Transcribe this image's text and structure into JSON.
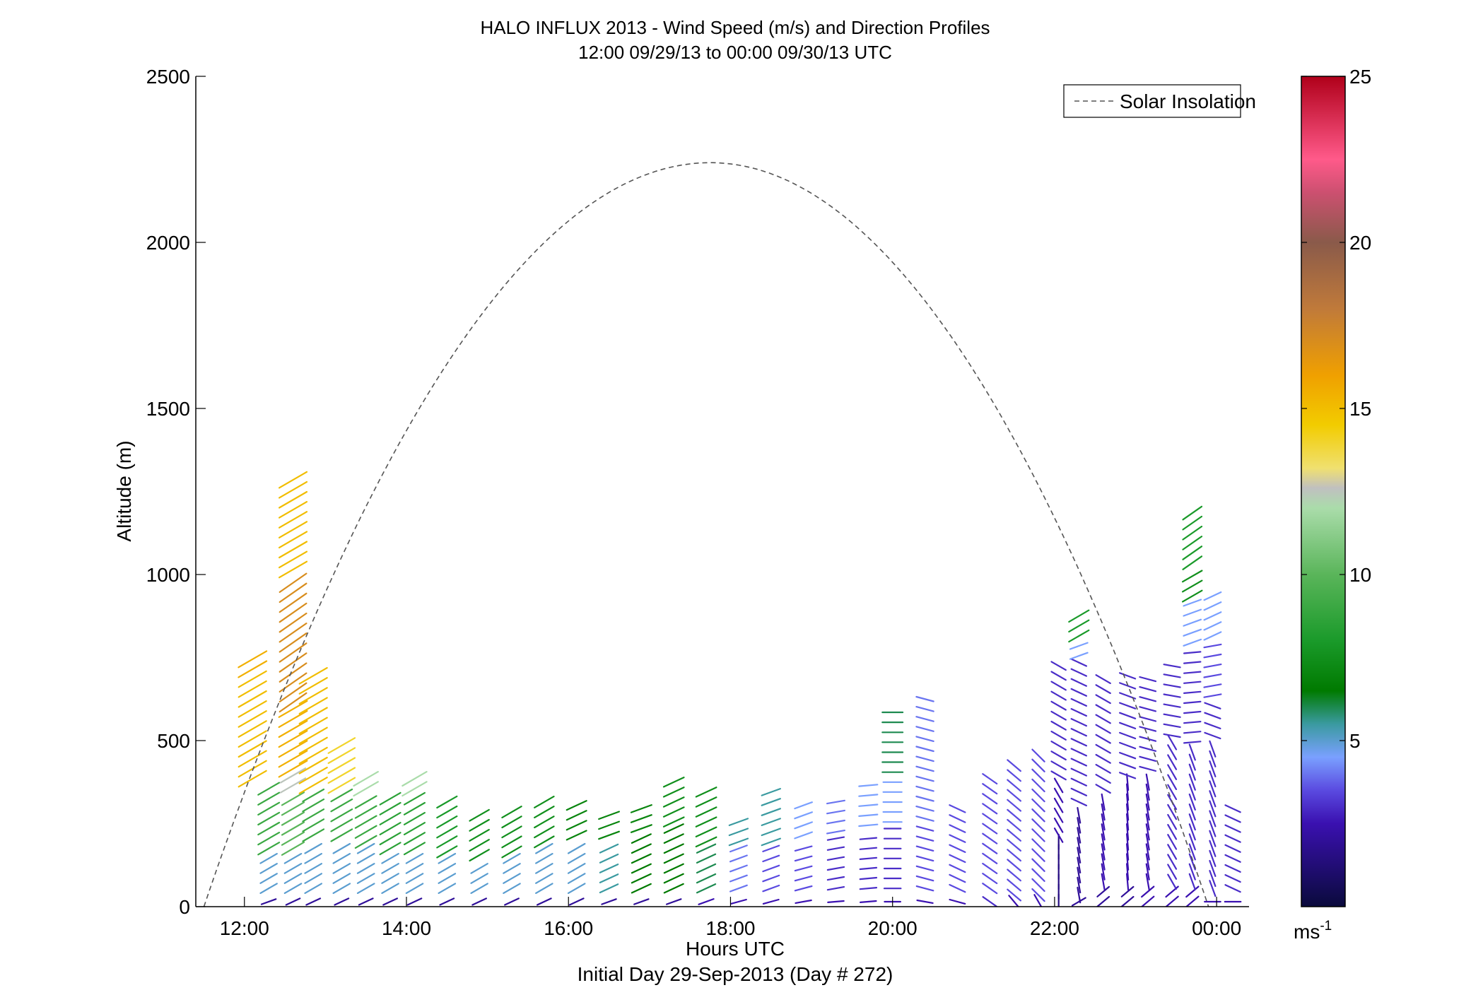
{
  "chart_data": {
    "type": "wind_barb_profile",
    "title": "HALO INFLUX 2013 - Wind Speed (m/s) and Direction Profiles",
    "subtitle": "12:00 09/29/13 to 00:00 09/30/13  UTC",
    "xlabel": "Hours UTC",
    "ylabel": "Altitude (m)",
    "footer": "Initial Day 29-Sep-2013 (Day # 272)",
    "xlim": [
      11.4,
      24.4
    ],
    "ylim": [
      0,
      2500
    ],
    "x_ticks": [
      12,
      14,
      16,
      18,
      20,
      22,
      24
    ],
    "x_tick_labels": [
      "12:00",
      "14:00",
      "16:00",
      "18:00",
      "20:00",
      "22:00",
      "00:00"
    ],
    "y_ticks": [
      0,
      500,
      1000,
      1500,
      2000,
      2500
    ],
    "y_tick_labels": [
      "0",
      "500",
      "1000",
      "1500",
      "2000",
      "2500"
    ],
    "legend": {
      "label": "Solar Insolation",
      "placement": "top-right",
      "style": "dashed",
      "color": "#555555"
    },
    "solar_insolation": {
      "start_hour": 11.5,
      "peak_hour": 17.75,
      "end_hour": 23.9,
      "peak_altitude": 2240
    },
    "colorbar": {
      "range": [
        0,
        25
      ],
      "ticks": [
        5,
        10,
        15,
        20,
        25
      ],
      "tick_labels": [
        "5",
        "10",
        "15",
        "20",
        "25"
      ],
      "unit": "ms",
      "unit_exponent": "-1",
      "stops": [
        {
          "v": 0,
          "c": "#0a0a3c"
        },
        {
          "v": 2.5,
          "c": "#3a10b0"
        },
        {
          "v": 3.5,
          "c": "#5a4ae0"
        },
        {
          "v": 4.5,
          "c": "#7aa0ff"
        },
        {
          "v": 5.5,
          "c": "#3a9aa0"
        },
        {
          "v": 6.5,
          "c": "#007a00"
        },
        {
          "v": 8.0,
          "c": "#1a9a2a"
        },
        {
          "v": 10.0,
          "c": "#5ab55a"
        },
        {
          "v": 12.0,
          "c": "#aadcaa"
        },
        {
          "v": 12.6,
          "c": "#c0c0c0"
        },
        {
          "v": 13.2,
          "c": "#f0e070"
        },
        {
          "v": 14.5,
          "c": "#f2cc00"
        },
        {
          "v": 16.0,
          "c": "#f0a000"
        },
        {
          "v": 18.0,
          "c": "#c07a3a"
        },
        {
          "v": 20.0,
          "c": "#8a5a4a"
        },
        {
          "v": 21.5,
          "c": "#cc5070"
        },
        {
          "v": 22.5,
          "c": "#ff5a8a"
        },
        {
          "v": 25.0,
          "c": "#b0001a"
        }
      ]
    },
    "profiles": [
      {
        "hour": 12.1,
        "segments": [
          [
            700,
            770,
            15.5,
            30
          ],
          [
            370,
            700,
            15,
            30
          ]
        ]
      },
      {
        "hour": 12.3,
        "segments": [
          [
            0,
            40,
            2,
            20
          ],
          [
            40,
            160,
            5,
            30
          ],
          [
            160,
            360,
            9,
            30
          ]
        ]
      },
      {
        "hour": 12.6,
        "segments": [
          [
            0,
            40,
            2,
            25
          ],
          [
            40,
            160,
            5,
            30
          ],
          [
            160,
            350,
            10,
            30
          ],
          [
            350,
            400,
            12.5,
            30
          ],
          [
            400,
            600,
            15.5,
            30
          ],
          [
            600,
            1000,
            17,
            35
          ],
          [
            1000,
            1290,
            15,
            30
          ]
        ]
      },
      {
        "hour": 12.85,
        "segments": [
          [
            0,
            40,
            2,
            25
          ],
          [
            40,
            200,
            5,
            30
          ],
          [
            200,
            350,
            9,
            30
          ],
          [
            350,
            700,
            15,
            30
          ]
        ]
      },
      {
        "hour": 13.2,
        "segments": [
          [
            0,
            40,
            2,
            25
          ],
          [
            40,
            200,
            5,
            30
          ],
          [
            200,
            350,
            9,
            30
          ],
          [
            350,
            490,
            14,
            30
          ]
        ]
      },
      {
        "hour": 13.5,
        "segments": [
          [
            0,
            40,
            2,
            25
          ],
          [
            40,
            180,
            5,
            30
          ],
          [
            180,
            340,
            9,
            30
          ],
          [
            340,
            400,
            12,
            30
          ]
        ]
      },
      {
        "hour": 13.8,
        "segments": [
          [
            0,
            40,
            2,
            25
          ],
          [
            40,
            160,
            5,
            30
          ],
          [
            160,
            340,
            8.5,
            30
          ]
        ]
      },
      {
        "hour": 14.1,
        "segments": [
          [
            0,
            40,
            2,
            25
          ],
          [
            40,
            160,
            5,
            30
          ],
          [
            160,
            340,
            8.5,
            30
          ],
          [
            340,
            400,
            12,
            30
          ]
        ]
      },
      {
        "hour": 14.5,
        "segments": [
          [
            0,
            40,
            2,
            25
          ],
          [
            40,
            150,
            5,
            30
          ],
          [
            150,
            330,
            8,
            30
          ]
        ]
      },
      {
        "hour": 14.9,
        "segments": [
          [
            0,
            40,
            2,
            25
          ],
          [
            40,
            140,
            5,
            30
          ],
          [
            140,
            300,
            7.5,
            30
          ]
        ]
      },
      {
        "hour": 15.3,
        "segments": [
          [
            0,
            40,
            2,
            25
          ],
          [
            40,
            150,
            5,
            30
          ],
          [
            150,
            300,
            7.5,
            30
          ]
        ]
      },
      {
        "hour": 15.7,
        "segments": [
          [
            0,
            40,
            2,
            25
          ],
          [
            40,
            180,
            5,
            30
          ],
          [
            180,
            330,
            7.5,
            30
          ]
        ]
      },
      {
        "hour": 16.1,
        "segments": [
          [
            0,
            40,
            2,
            25
          ],
          [
            40,
            200,
            5,
            30
          ],
          [
            200,
            320,
            7,
            25
          ]
        ]
      },
      {
        "hour": 16.5,
        "segments": [
          [
            0,
            40,
            2,
            20
          ],
          [
            40,
            200,
            5.5,
            25
          ],
          [
            200,
            300,
            7,
            20
          ]
        ]
      },
      {
        "hour": 16.9,
        "segments": [
          [
            0,
            40,
            2,
            20
          ],
          [
            40,
            220,
            6.5,
            25
          ],
          [
            220,
            300,
            7,
            20
          ]
        ]
      },
      {
        "hour": 17.3,
        "segments": [
          [
            0,
            40,
            2,
            20
          ],
          [
            40,
            240,
            6.5,
            25
          ],
          [
            240,
            390,
            7.5,
            25
          ]
        ]
      },
      {
        "hour": 17.7,
        "segments": [
          [
            0,
            40,
            2.5,
            20
          ],
          [
            40,
            180,
            6,
            25
          ],
          [
            180,
            360,
            7.5,
            25
          ]
        ]
      },
      {
        "hour": 18.1,
        "segments": [
          [
            0,
            40,
            2.5,
            15
          ],
          [
            40,
            180,
            4,
            20
          ],
          [
            180,
            280,
            5.5,
            20
          ]
        ]
      },
      {
        "hour": 18.5,
        "segments": [
          [
            0,
            40,
            2.5,
            15
          ],
          [
            40,
            180,
            3.5,
            20
          ],
          [
            180,
            360,
            5.5,
            20
          ]
        ]
      },
      {
        "hour": 18.9,
        "segments": [
          [
            0,
            40,
            2.5,
            10
          ],
          [
            40,
            200,
            3.5,
            15
          ],
          [
            200,
            330,
            4.5,
            20
          ]
        ]
      },
      {
        "hour": 19.3,
        "segments": [
          [
            0,
            40,
            2.5,
            5
          ],
          [
            40,
            210,
            3,
            10
          ],
          [
            210,
            330,
            4,
            10
          ]
        ]
      },
      {
        "hour": 19.7,
        "segments": [
          [
            0,
            40,
            2.5,
            5
          ],
          [
            40,
            230,
            3,
            5
          ],
          [
            230,
            380,
            4.5,
            5
          ]
        ]
      },
      {
        "hour": 20.0,
        "segments": [
          [
            0,
            40,
            2.5,
            0
          ],
          [
            40,
            240,
            3,
            0
          ],
          [
            240,
            390,
            4.5,
            0
          ],
          [
            390,
            590,
            6,
            0
          ]
        ]
      },
      {
        "hour": 20.4,
        "segments": [
          [
            0,
            40,
            2.5,
            -10
          ],
          [
            40,
            250,
            3.5,
            -15
          ],
          [
            250,
            640,
            4,
            -15
          ]
        ]
      },
      {
        "hour": 20.8,
        "segments": [
          [
            0,
            40,
            2.5,
            -15
          ],
          [
            40,
            300,
            3.5,
            -25
          ]
        ]
      },
      {
        "hour": 21.2,
        "segments": [
          [
            0,
            40,
            3,
            -35
          ],
          [
            40,
            400,
            3.5,
            -35
          ]
        ]
      },
      {
        "hour": 21.5,
        "segments": [
          [
            0,
            20,
            2.5,
            -50
          ],
          [
            20,
            450,
            3.5,
            -40
          ]
        ]
      },
      {
        "hour": 21.8,
        "segments": [
          [
            0,
            20,
            2.5,
            -60
          ],
          [
            20,
            460,
            3.5,
            -45
          ]
        ]
      },
      {
        "hour": 22.05,
        "segments": [
          [
            0,
            200,
            1.5,
            -90
          ],
          [
            200,
            380,
            2.5,
            -60
          ],
          [
            380,
            740,
            3,
            -30
          ]
        ]
      },
      {
        "hour": 22.3,
        "segments": [
          [
            0,
            20,
            2,
            30
          ],
          [
            20,
            300,
            2,
            -80
          ],
          [
            300,
            740,
            3,
            -25
          ],
          [
            740,
            800,
            4.5,
            20
          ],
          [
            800,
            900,
            8,
            30
          ]
        ]
      },
      {
        "hour": 22.6,
        "segments": [
          [
            0,
            60,
            2,
            40
          ],
          [
            60,
            340,
            2.5,
            -80
          ],
          [
            340,
            700,
            3,
            -30
          ]
        ]
      },
      {
        "hour": 22.9,
        "segments": [
          [
            0,
            60,
            2,
            40
          ],
          [
            60,
            380,
            2.5,
            -85
          ],
          [
            380,
            700,
            3,
            -20
          ]
        ]
      },
      {
        "hour": 23.15,
        "segments": [
          [
            0,
            60,
            2.5,
            40
          ],
          [
            60,
            400,
            2.5,
            -80
          ],
          [
            400,
            700,
            3,
            -15
          ]
        ]
      },
      {
        "hour": 23.45,
        "segments": [
          [
            0,
            60,
            2.5,
            40
          ],
          [
            60,
            500,
            3,
            -60
          ],
          [
            500,
            740,
            3,
            -10
          ]
        ]
      },
      {
        "hour": 23.7,
        "segments": [
          [
            0,
            60,
            2.5,
            40
          ],
          [
            60,
            480,
            3,
            -70
          ],
          [
            480,
            780,
            3,
            5
          ],
          [
            780,
            920,
            4.5,
            20
          ],
          [
            920,
            1020,
            7.5,
            30
          ],
          [
            1020,
            1200,
            8,
            35
          ]
        ]
      },
      {
        "hour": 23.95,
        "segments": [
          [
            0,
            40,
            2.5,
            0
          ],
          [
            40,
            500,
            3,
            -70
          ],
          [
            500,
            620,
            3,
            -20
          ],
          [
            620,
            800,
            3.5,
            10
          ],
          [
            800,
            940,
            4.5,
            25
          ]
        ]
      },
      {
        "hour": 24.2,
        "segments": [
          [
            0,
            40,
            2.5,
            0
          ],
          [
            40,
            300,
            3,
            -25
          ]
        ]
      }
    ]
  }
}
